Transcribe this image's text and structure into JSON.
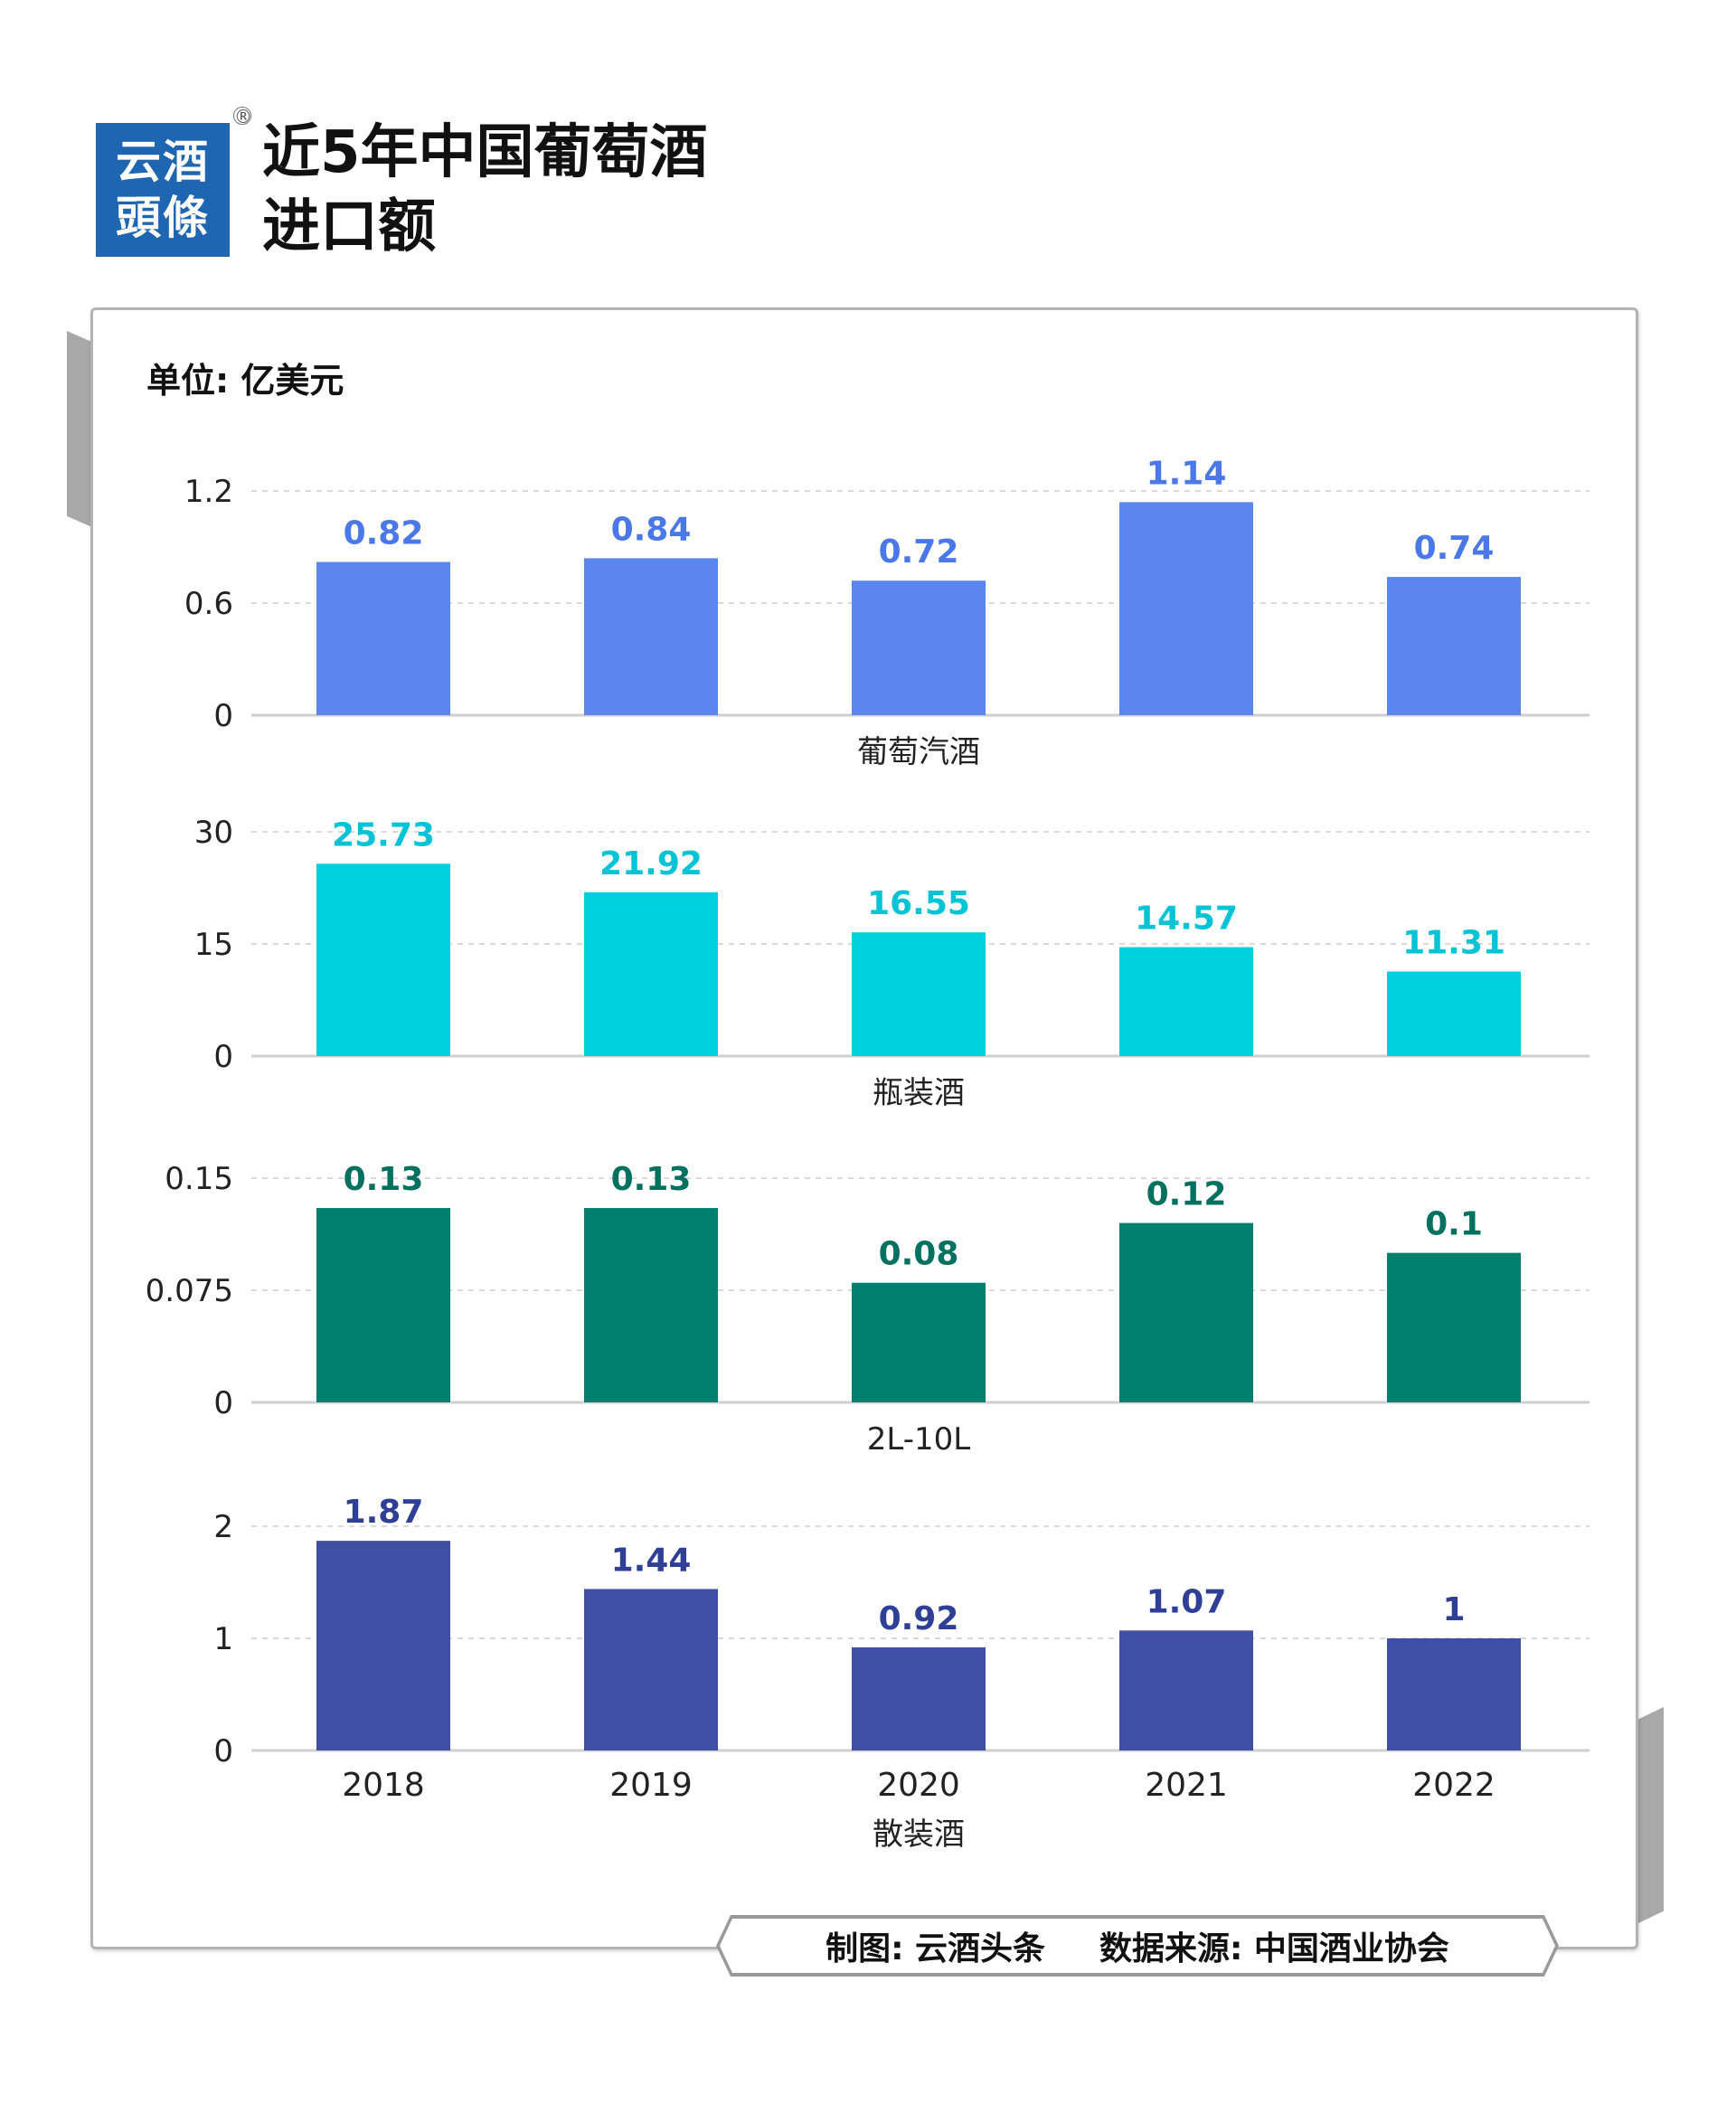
{
  "logo": {
    "line1": "云酒",
    "line2": "頭條",
    "registered": "®"
  },
  "title": {
    "line1": "近5年中国葡萄酒",
    "line2": "进口额"
  },
  "unit_label": "单位: 亿美元",
  "footer": {
    "credit": "制图: 云酒头条",
    "source": "数据来源: 中国酒业协会"
  },
  "colors": {
    "sparkling": "#5b86f0",
    "bottled": "#00cfe0",
    "medium": "#007f6e",
    "bulk": "#3f4fa3"
  },
  "chart_data": [
    {
      "type": "bar",
      "categories": [
        "2018",
        "2019",
        "2020",
        "2021",
        "2022"
      ],
      "values": [
        0.82,
        0.84,
        0.72,
        1.14,
        0.74
      ],
      "value_labels": [
        "0.82",
        "0.84",
        "0.72",
        "1.14",
        "0.74"
      ],
      "xlabel": "葡萄汽酒",
      "ylim": [
        0,
        1.2
      ],
      "yticks": [
        "0",
        "0.6",
        "1.2"
      ],
      "color": "#5b86f0",
      "label_color": "#4a78e8",
      "show_categories": false,
      "grid": true
    },
    {
      "type": "bar",
      "categories": [
        "2018",
        "2019",
        "2020",
        "2021",
        "2022"
      ],
      "values": [
        25.73,
        21.92,
        16.55,
        14.57,
        11.31
      ],
      "value_labels": [
        "25.73",
        "21.92",
        "16.55",
        "14.57",
        "11.31"
      ],
      "xlabel": "瓶装酒",
      "ylim": [
        0,
        30
      ],
      "yticks": [
        "0",
        "15",
        "30"
      ],
      "color": "#00cfe0",
      "label_color": "#00c3d6",
      "show_categories": false,
      "grid": true
    },
    {
      "type": "bar",
      "categories": [
        "2018",
        "2019",
        "2020",
        "2021",
        "2022"
      ],
      "values": [
        0.13,
        0.13,
        0.08,
        0.12,
        0.1
      ],
      "value_labels": [
        "0.13",
        "0.13",
        "0.08",
        "0.12",
        "0.1"
      ],
      "xlabel": "2L-10L",
      "ylim": [
        0,
        0.15
      ],
      "yticks": [
        "0",
        "0.075",
        "0.15"
      ],
      "color": "#007f6e",
      "label_color": "#00705f",
      "show_categories": false,
      "grid": true
    },
    {
      "type": "bar",
      "categories": [
        "2018",
        "2019",
        "2020",
        "2021",
        "2022"
      ],
      "values": [
        1.87,
        1.44,
        0.92,
        1.07,
        1
      ],
      "value_labels": [
        "1.87",
        "1.44",
        "0.92",
        "1.07",
        "1"
      ],
      "xlabel": "散装酒",
      "ylim": [
        0,
        2
      ],
      "yticks": [
        "0",
        "1",
        "2"
      ],
      "color": "#3f4fa3",
      "label_color": "#2f3f96",
      "show_categories": true,
      "grid": true
    }
  ]
}
